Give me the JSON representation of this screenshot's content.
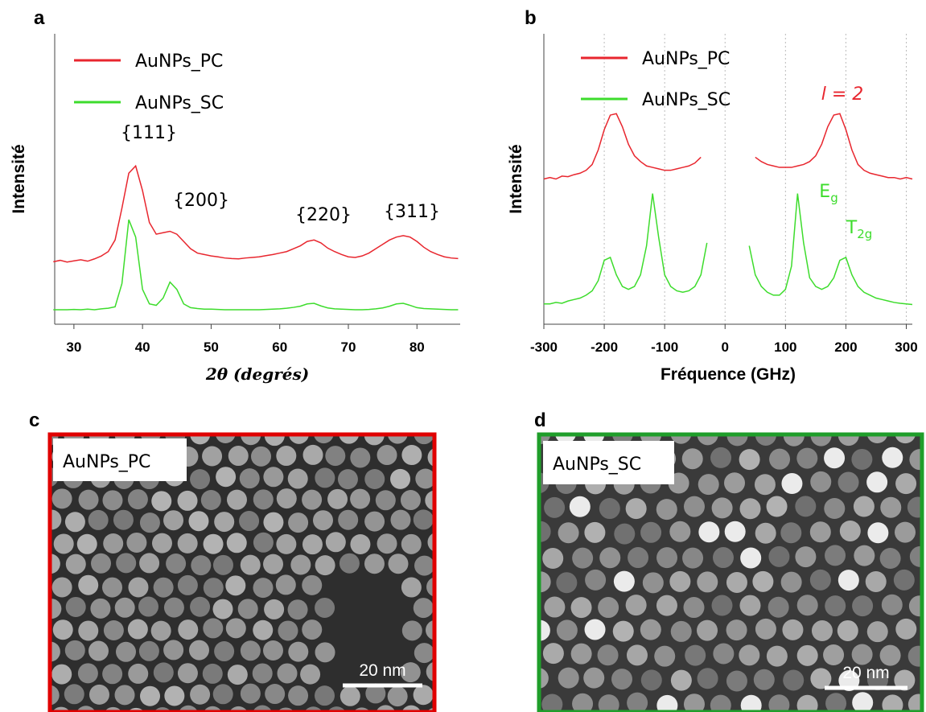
{
  "chart_data": [
    {
      "type": "line",
      "panel": "a",
      "xlabel": "2θ (degrés)",
      "ylabel": "Intensité",
      "x": [
        27,
        28,
        29,
        30,
        31,
        32,
        33,
        34,
        35,
        36,
        37,
        38,
        39,
        40,
        41,
        42,
        43,
        44,
        45,
        46,
        47,
        48,
        49,
        50,
        51,
        52,
        53,
        54,
        55,
        56,
        57,
        58,
        59,
        60,
        61,
        62,
        63,
        64,
        65,
        66,
        67,
        68,
        69,
        70,
        71,
        72,
        73,
        74,
        75,
        76,
        77,
        78,
        79,
        80,
        81,
        82,
        83,
        84,
        85,
        86
      ],
      "series": [
        {
          "name": "AuNPs_PC",
          "color": "#e8262e",
          "values": [
            0.215,
            0.22,
            0.214,
            0.218,
            0.222,
            0.217,
            0.225,
            0.235,
            0.25,
            0.29,
            0.4,
            0.52,
            0.545,
            0.46,
            0.35,
            0.31,
            0.315,
            0.32,
            0.31,
            0.285,
            0.26,
            0.245,
            0.24,
            0.235,
            0.232,
            0.228,
            0.226,
            0.225,
            0.228,
            0.23,
            0.232,
            0.236,
            0.24,
            0.245,
            0.25,
            0.26,
            0.27,
            0.285,
            0.29,
            0.28,
            0.262,
            0.25,
            0.24,
            0.232,
            0.23,
            0.235,
            0.245,
            0.26,
            0.275,
            0.29,
            0.3,
            0.305,
            0.3,
            0.285,
            0.265,
            0.25,
            0.24,
            0.232,
            0.228,
            0.226
          ]
        },
        {
          "name": "AuNPs_SC",
          "color": "#3ddc2c",
          "values": [
            0.05,
            0.05,
            0.05,
            0.051,
            0.05,
            0.052,
            0.05,
            0.053,
            0.055,
            0.06,
            0.14,
            0.36,
            0.3,
            0.12,
            0.07,
            0.065,
            0.09,
            0.145,
            0.12,
            0.07,
            0.057,
            0.054,
            0.052,
            0.052,
            0.051,
            0.05,
            0.05,
            0.05,
            0.05,
            0.05,
            0.05,
            0.051,
            0.052,
            0.053,
            0.055,
            0.058,
            0.062,
            0.07,
            0.072,
            0.063,
            0.056,
            0.053,
            0.052,
            0.051,
            0.05,
            0.05,
            0.051,
            0.053,
            0.056,
            0.062,
            0.07,
            0.072,
            0.065,
            0.057,
            0.054,
            0.053,
            0.052,
            0.051,
            0.05,
            0.05
          ]
        }
      ],
      "xlim": [
        27.2,
        86.3
      ],
      "ylim": [
        0,
        1
      ],
      "xticks": [
        30,
        40,
        50,
        60,
        70,
        80
      ],
      "legend": "upper left",
      "grid": false,
      "annotations": [
        {
          "text": "{111}",
          "color": "#000000"
        },
        {
          "text": "{200}",
          "color": "#000000"
        },
        {
          "text": "{220}",
          "color": "#000000"
        },
        {
          "text": "{311}",
          "color": "#000000"
        }
      ]
    },
    {
      "type": "line",
      "panel": "b",
      "xlabel": "Fréquence (GHz)",
      "ylabel": "Intensité",
      "x": [
        -300,
        -290,
        -280,
        -270,
        -260,
        -250,
        -240,
        -230,
        -220,
        -210,
        -200,
        -190,
        -180,
        -170,
        -160,
        -150,
        -140,
        -130,
        -120,
        -110,
        -100,
        -90,
        -80,
        -70,
        -60,
        -50,
        -40,
        -30,
        -20,
        -10,
        0,
        10,
        20,
        30,
        40,
        50,
        60,
        70,
        80,
        90,
        100,
        110,
        120,
        130,
        140,
        150,
        160,
        170,
        180,
        190,
        200,
        210,
        220,
        230,
        240,
        250,
        260,
        270,
        280,
        290,
        300,
        310
      ],
      "series": [
        {
          "name": "AuNPs_PC",
          "color": "#e8262e",
          "values": [
            0.5,
            0.505,
            0.5,
            0.51,
            0.508,
            0.515,
            0.52,
            0.53,
            0.55,
            0.6,
            0.67,
            0.72,
            0.725,
            0.68,
            0.62,
            0.58,
            0.56,
            0.545,
            0.54,
            0.535,
            0.53,
            0.53,
            0.535,
            0.54,
            0.545,
            0.555,
            0.575,
            null,
            null,
            null,
            null,
            null,
            null,
            null,
            null,
            0.575,
            0.56,
            0.55,
            0.545,
            0.54,
            0.54,
            0.54,
            0.545,
            0.55,
            0.56,
            0.58,
            0.62,
            0.68,
            0.72,
            0.725,
            0.67,
            0.6,
            0.55,
            0.53,
            0.52,
            0.515,
            0.51,
            0.505,
            0.505,
            0.5,
            0.505,
            0.5
          ]
        },
        {
          "name": "AuNPs_SC",
          "color": "#3ddc2c",
          "values": [
            0.07,
            0.07,
            0.075,
            0.072,
            0.08,
            0.085,
            0.09,
            0.1,
            0.115,
            0.15,
            0.22,
            0.23,
            0.17,
            0.13,
            0.12,
            0.13,
            0.17,
            0.27,
            0.45,
            0.3,
            0.17,
            0.13,
            0.115,
            0.11,
            0.115,
            0.13,
            0.17,
            0.28,
            null,
            null,
            null,
            null,
            null,
            null,
            0.27,
            0.17,
            0.13,
            0.11,
            0.1,
            0.1,
            0.12,
            0.2,
            0.45,
            0.28,
            0.16,
            0.13,
            0.12,
            0.13,
            0.16,
            0.22,
            0.23,
            0.17,
            0.13,
            0.11,
            0.1,
            0.09,
            0.085,
            0.08,
            0.075,
            0.072,
            0.07,
            0.068
          ]
        }
      ],
      "xlim": [
        -300,
        310
      ],
      "ylim": [
        0,
        1
      ],
      "xticks": [
        -300,
        -200,
        -100,
        0,
        100,
        200,
        300
      ],
      "legend": "upper left",
      "grid": true,
      "annotations": [
        {
          "text": "l = 2",
          "color": "#e8262e"
        },
        {
          "text": "E",
          "sub": "g",
          "color": "#3ddc2c"
        },
        {
          "text": "T",
          "sub": "2g",
          "color": "#3ddc2c"
        }
      ]
    }
  ],
  "images": [
    {
      "panel": "c",
      "label": "AuNPs_PC",
      "scale_bar": "20 nm",
      "border": "#e00000"
    },
    {
      "panel": "d",
      "label": "AuNPs_SC",
      "scale_bar": "20 nm",
      "border": "#1f9e2a"
    }
  ]
}
